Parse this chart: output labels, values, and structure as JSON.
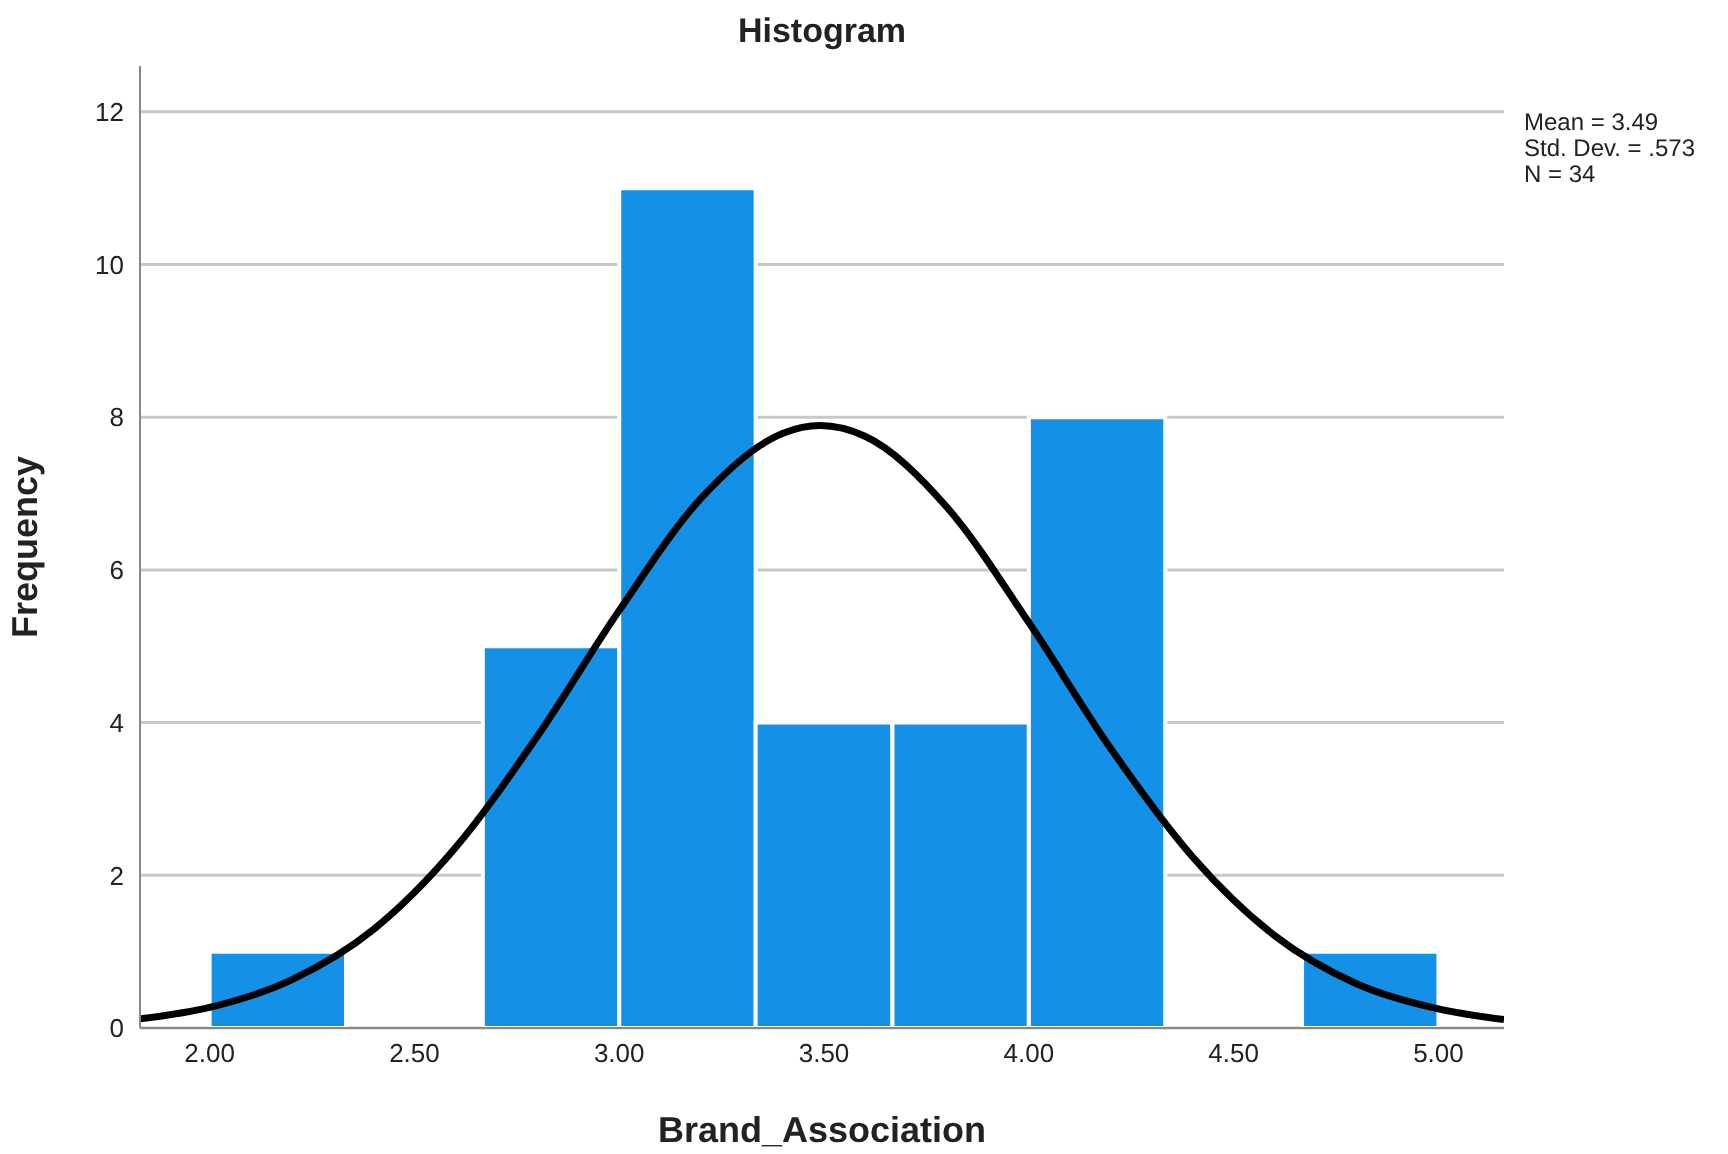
{
  "chart_data": {
    "type": "histogram",
    "title": "Histogram",
    "xlabel": "Brand_Association",
    "ylabel": "Frequency",
    "annotations": [
      "Mean = 3.49",
      "Std. Dev. = .573",
      "N = 34"
    ],
    "bins": [
      2,
      2.333,
      2.667,
      3,
      3.333,
      3.667,
      4,
      4.333,
      4.667,
      5
    ],
    "values": [
      1,
      0,
      5,
      11,
      4,
      4,
      8,
      0,
      1
    ],
    "color": "#1490e6",
    "series": [
      {
        "type": "line",
        "color": "#000000",
        "x": [
          1.83,
          2.0,
          2.2,
          2.4,
          2.6,
          2.8,
          3.0,
          3.2,
          3.4,
          3.49,
          3.6,
          3.8,
          4.0,
          4.2,
          4.4,
          4.6,
          4.8,
          5.0,
          5.16
        ],
        "values": [
          0.12,
          0.27,
          0.63,
          1.29,
          2.36,
          3.82,
          5.47,
          6.94,
          7.79,
          7.89,
          7.75,
          6.82,
          5.31,
          3.66,
          2.24,
          1.21,
          0.58,
          0.25,
          0.11
        ]
      }
    ],
    "xlim": [
      1.83,
      5.16
    ],
    "xticks": [
      {
        "value": 2,
        "label": "2.00"
      },
      {
        "value": 2.5,
        "label": "2.50"
      },
      {
        "value": 3,
        "label": "3.00"
      },
      {
        "value": 3.5,
        "label": "3.50"
      },
      {
        "value": 4,
        "label": "4.00"
      },
      {
        "value": 4.5,
        "label": "4.50"
      },
      {
        "value": 5,
        "label": "5.00"
      }
    ],
    "ylim": [
      0,
      12.6
    ],
    "yticks": [
      0,
      2,
      4,
      6,
      8,
      10,
      12
    ],
    "grid": "y",
    "marker": "none",
    "line_style": "solid"
  }
}
